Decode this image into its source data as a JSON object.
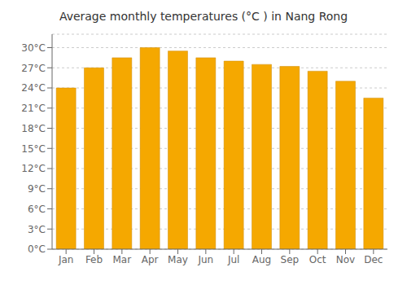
{
  "chart_data": {
    "type": "bar",
    "title": "Average monthly temperatures (°C ) in Nang Rong",
    "categories": [
      "Jan",
      "Feb",
      "Mar",
      "Apr",
      "May",
      "Jun",
      "Jul",
      "Aug",
      "Sep",
      "Oct",
      "Nov",
      "Dec"
    ],
    "values": [
      24.0,
      27.0,
      28.5,
      30.0,
      29.5,
      28.5,
      28.0,
      27.5,
      27.2,
      26.5,
      25.0,
      22.5
    ],
    "color": "#F5A800",
    "ylim": [
      0,
      32
    ],
    "yticks": [
      {
        "value": 0,
        "label": "0°C"
      },
      {
        "value": 3,
        "label": "3°C"
      },
      {
        "value": 6,
        "label": "6°C"
      },
      {
        "value": 9,
        "label": "9°C"
      },
      {
        "value": 12,
        "label": "12°C"
      },
      {
        "value": 15,
        "label": "15°C"
      },
      {
        "value": 18,
        "label": "18°C"
      },
      {
        "value": 21,
        "label": "21°C"
      },
      {
        "value": 24,
        "label": "24°C"
      },
      {
        "value": 27,
        "label": "27°C"
      },
      {
        "value": 30,
        "label": "30°C"
      }
    ],
    "grid": true
  }
}
